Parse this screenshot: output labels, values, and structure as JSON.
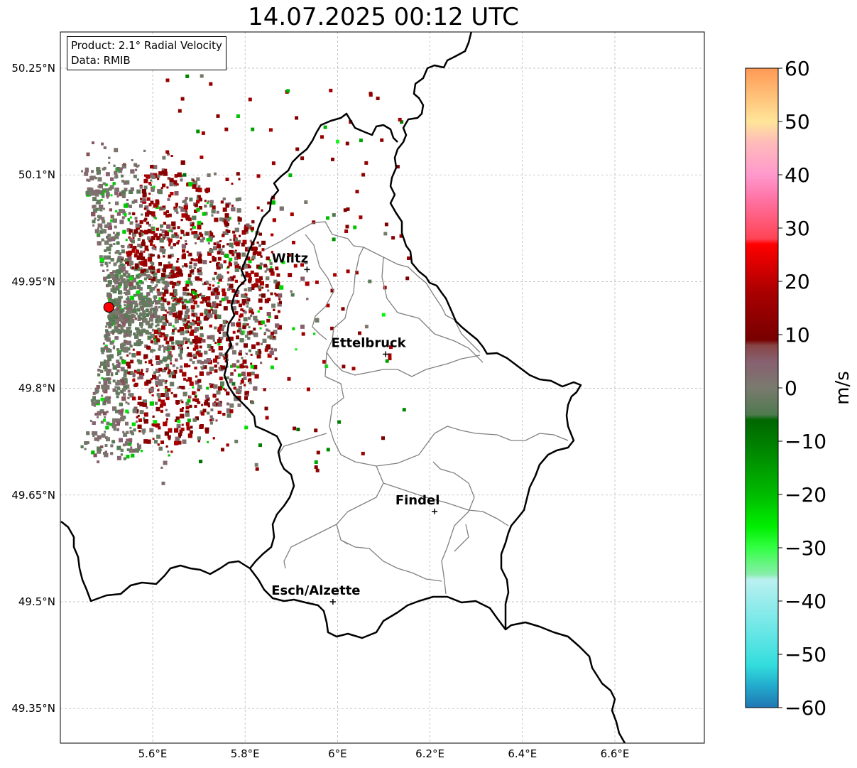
{
  "title": "14.07.2025 00:12 UTC",
  "info": {
    "product": "Product: 2.1° Radial Velocity",
    "data": "Data: RMIB"
  },
  "axes": {
    "lon_ticks": [
      {
        "value": 5.6,
        "label": "5.6°E"
      },
      {
        "value": 5.8,
        "label": "5.8°E"
      },
      {
        "value": 6.0,
        "label": "6°E"
      },
      {
        "value": 6.2,
        "label": "6.2°E"
      },
      {
        "value": 6.4,
        "label": "6.4°E"
      },
      {
        "value": 6.6,
        "label": "6.6°E"
      }
    ],
    "lat_ticks": [
      {
        "value": 50.25,
        "label": "50.25°N"
      },
      {
        "value": 50.1,
        "label": "50.1°N"
      },
      {
        "value": 49.95,
        "label": "49.95°N"
      },
      {
        "value": 49.8,
        "label": "49.8°N"
      },
      {
        "value": 49.65,
        "label": "49.65°N"
      },
      {
        "value": 49.5,
        "label": "49.5°N"
      },
      {
        "value": 49.35,
        "label": "49.35°N"
      }
    ],
    "lon_range": [
      5.4,
      6.8
    ],
    "lat_range": [
      49.3,
      50.3
    ],
    "grid": true
  },
  "cities": [
    {
      "name": "Wiltz",
      "lon": 5.934,
      "lat": 49.967
    },
    {
      "name": "Ettelbruck",
      "lon": 6.104,
      "lat": 49.848
    },
    {
      "name": "Findel",
      "lon": 6.21,
      "lat": 49.627
    },
    {
      "name": "Esch/Alzette",
      "lon": 5.99,
      "lat": 49.5
    }
  ],
  "radar_site": {
    "lon": 5.505,
    "lat": 49.914,
    "color": "#ff0000"
  },
  "colorbar": {
    "label": "m/s",
    "min": -60,
    "max": 60,
    "ticks": [
      {
        "value": 60,
        "label": "60"
      },
      {
        "value": 50,
        "label": "50"
      },
      {
        "value": 40,
        "label": "40"
      },
      {
        "value": 30,
        "label": "30"
      },
      {
        "value": 20,
        "label": "20"
      },
      {
        "value": 10,
        "label": "10"
      },
      {
        "value": 0,
        "label": "0"
      },
      {
        "value": -10,
        "label": "−10"
      },
      {
        "value": -20,
        "label": "−20"
      },
      {
        "value": -30,
        "label": "−30"
      },
      {
        "value": -40,
        "label": "−40"
      },
      {
        "value": -50,
        "label": "−50"
      },
      {
        "value": -60,
        "label": "−60"
      }
    ],
    "stops": [
      {
        "value": -60,
        "color": "#1f77b4"
      },
      {
        "value": -56,
        "color": "#22aacc"
      },
      {
        "value": -52,
        "color": "#33dddd"
      },
      {
        "value": -44,
        "color": "#77e8e8"
      },
      {
        "value": -36,
        "color": "#bbf0f0"
      },
      {
        "value": -35,
        "color": "#88eeaa"
      },
      {
        "value": -30,
        "color": "#33ff44"
      },
      {
        "value": -26,
        "color": "#00ee00"
      },
      {
        "value": -20,
        "color": "#00bb00"
      },
      {
        "value": -12,
        "color": "#008800"
      },
      {
        "value": -6,
        "color": "#006600"
      },
      {
        "value": -5,
        "color": "#4f7a4f"
      },
      {
        "value": 0,
        "color": "#7a7a6e"
      },
      {
        "value": 5,
        "color": "#886070"
      },
      {
        "value": 8,
        "color": "#884444"
      },
      {
        "value": 9,
        "color": "#770000"
      },
      {
        "value": 18,
        "color": "#aa0000"
      },
      {
        "value": 27,
        "color": "#ff0000"
      },
      {
        "value": 28,
        "color": "#ff4455"
      },
      {
        "value": 36,
        "color": "#ff77aa"
      },
      {
        "value": 40,
        "color": "#ff99cc"
      },
      {
        "value": 46,
        "color": "#ffbbbb"
      },
      {
        "value": 50,
        "color": "#ffe599"
      },
      {
        "value": 60,
        "color": "#ff9955"
      }
    ]
  },
  "colors": {
    "country_border": "#000000",
    "canton_border": "#808080",
    "grid": "#b0b0b0"
  }
}
